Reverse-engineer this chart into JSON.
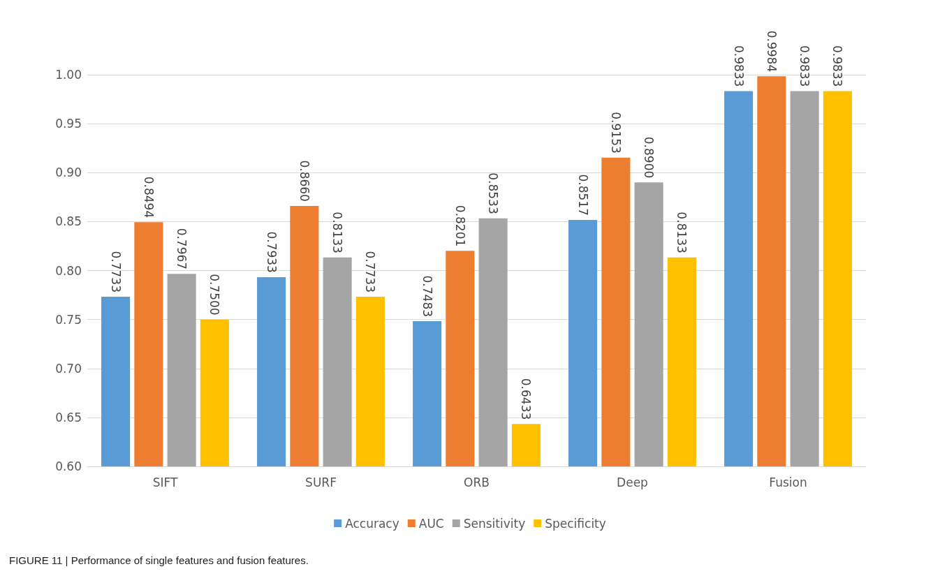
{
  "chart_data": {
    "type": "bar",
    "title": "FIGURE 11 | Performance of single features and fusion features.",
    "categories": [
      "SIFT",
      "SURF",
      "ORB",
      "Deep",
      "Fusion"
    ],
    "series": [
      {
        "name": "Accuracy",
        "color": "#5b9bd5",
        "values": [
          0.7733,
          0.7933,
          0.7483,
          0.8517,
          0.9833
        ],
        "value_labels": [
          "0.7733",
          "0.7933",
          "0.7483",
          "0.8517",
          "0.9833"
        ]
      },
      {
        "name": "AUC",
        "color": "#ed7d31",
        "values": [
          0.8494,
          0.866,
          0.8201,
          0.9153,
          0.9984
        ],
        "value_labels": [
          "0.8494",
          "0.8660",
          "0.8201",
          "0.9153",
          "0.9984"
        ]
      },
      {
        "name": "Sensitivity",
        "color": "#a5a5a5",
        "values": [
          0.7967,
          0.8133,
          0.8533,
          0.89,
          0.9833
        ],
        "value_labels": [
          "0.7967",
          "0.8133",
          "0.8533",
          "0.8900",
          "0.9833"
        ]
      },
      {
        "name": "Specificity",
        "color": "#ffc000",
        "values": [
          0.75,
          0.7733,
          0.6433,
          0.8133,
          0.9833
        ],
        "value_labels": [
          "0.7500",
          "0.7733",
          "0.6433",
          "0.8133",
          "0.9833"
        ]
      }
    ],
    "ylim": [
      0.6,
      1.0
    ],
    "yticks": [
      {
        "value": 0.6,
        "label": "0.60"
      },
      {
        "value": 0.65,
        "label": "0.65"
      },
      {
        "value": 0.7,
        "label": "0.70"
      },
      {
        "value": 0.75,
        "label": "0.75"
      },
      {
        "value": 0.8,
        "label": "0.80"
      },
      {
        "value": 0.85,
        "label": "0.85"
      },
      {
        "value": 0.9,
        "label": "0.90"
      },
      {
        "value": 0.95,
        "label": "0.95"
      },
      {
        "value": 1.0,
        "label": "1.00"
      }
    ],
    "grid": "y",
    "legend": "bottom"
  }
}
